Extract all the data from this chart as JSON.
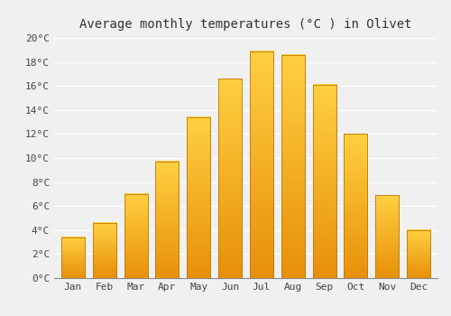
{
  "title": "Average monthly temperatures (°C ) in Olivet",
  "months": [
    "Jan",
    "Feb",
    "Mar",
    "Apr",
    "May",
    "Jun",
    "Jul",
    "Aug",
    "Sep",
    "Oct",
    "Nov",
    "Dec"
  ],
  "values": [
    3.4,
    4.6,
    7.0,
    9.7,
    13.4,
    16.6,
    18.9,
    18.6,
    16.1,
    12.0,
    6.9,
    4.0
  ],
  "bar_color": "#FFA500",
  "bar_edge_color": "#CC8800",
  "ylim": [
    0,
    20
  ],
  "yticks": [
    0,
    2,
    4,
    6,
    8,
    10,
    12,
    14,
    16,
    18,
    20
  ],
  "background_color": "#f0f0f0",
  "grid_color": "#ffffff",
  "title_fontsize": 10,
  "tick_fontsize": 8,
  "font_family": "monospace"
}
